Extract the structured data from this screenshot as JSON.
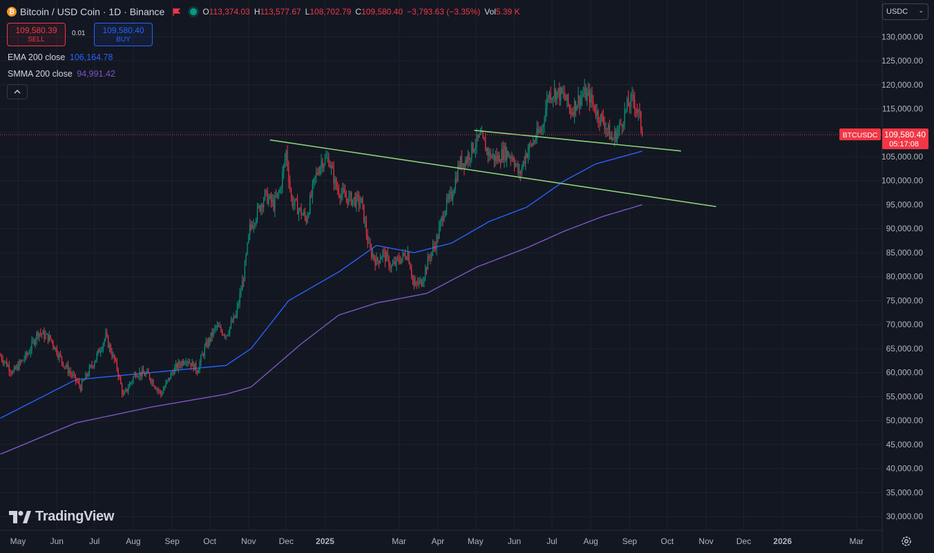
{
  "header": {
    "title": "Bitcoin / USD Coin · 1D · Binance",
    "ohlc": [
      {
        "key": "O",
        "value": "113,374.03"
      },
      {
        "key": "H",
        "value": "113,577.67"
      },
      {
        "key": "L",
        "value": "108,702.79"
      },
      {
        "key": "C",
        "value": "109,580.40"
      }
    ],
    "change": "−3,793.63 (−3.35%)",
    "vol_label": "Vol",
    "vol_value": "5.39 K"
  },
  "trade": {
    "sell_price": "109,580.39",
    "sell_label": "SELL",
    "spread": "0.01",
    "buy_price": "109,580.40",
    "buy_label": "BUY"
  },
  "indicators": [
    {
      "name": "EMA 200 close",
      "value": "106,164.78",
      "color": "#2962ff"
    },
    {
      "name": "SMMA 200 close",
      "value": "94,991.42",
      "color": "#7e57c2"
    }
  ],
  "currency": "USDC",
  "brand": "TradingView",
  "price_tag": {
    "symbol": "BTCUSDC",
    "price": "109,580.40",
    "countdown": "05:17:08"
  },
  "colors": {
    "background": "#131722",
    "up": "#089981",
    "down": "#f23645",
    "trendline": "#8bd27a",
    "grid": "#1e222d",
    "text": "#b2b5be"
  },
  "chart_data": {
    "type": "candlestick",
    "y_axis": {
      "min": 27000,
      "max": 132000,
      "ticks": [
        "130,000.00",
        "125,000.00",
        "120,000.00",
        "115,000.00",
        "110,000.00",
        "105,000.00",
        "100,000.00",
        "95,000.00",
        "90,000.00",
        "85,000.00",
        "80,000.00",
        "75,000.00",
        "70,000.00",
        "65,000.00",
        "60,000.00",
        "55,000.00",
        "50,000.00",
        "45,000.00",
        "40,000.00",
        "35,000.00",
        "30,000.00"
      ]
    },
    "x_axis": {
      "labels": [
        "May",
        "Jun",
        "Jul",
        "Aug",
        "Sep",
        "Oct",
        "Nov",
        "Dec",
        "2025",
        "Mar",
        "Apr",
        "May",
        "Jun",
        "Jul",
        "Aug",
        "Sep",
        "Oct",
        "Nov",
        "Dec",
        "2026",
        "Mar"
      ],
      "label_day_index": [
        0,
        31,
        61,
        92,
        123,
        153,
        184,
        214,
        245,
        304,
        335,
        365,
        396,
        426,
        457,
        488,
        518,
        549,
        579,
        610,
        669
      ],
      "bold_labels": [
        "2025",
        "2026"
      ]
    },
    "price_path_anchors": [
      {
        "day": 0,
        "price": 63500
      },
      {
        "day": 10,
        "price": 60000
      },
      {
        "day": 22,
        "price": 64000
      },
      {
        "day": 30,
        "price": 68500
      },
      {
        "day": 40,
        "price": 67000
      },
      {
        "day": 50,
        "price": 62000
      },
      {
        "day": 64,
        "price": 57000
      },
      {
        "day": 76,
        "price": 63000
      },
      {
        "day": 84,
        "price": 67500
      },
      {
        "day": 93,
        "price": 61000
      },
      {
        "day": 98,
        "price": 55000
      },
      {
        "day": 108,
        "price": 60000
      },
      {
        "day": 118,
        "price": 59500
      },
      {
        "day": 128,
        "price": 55500
      },
      {
        "day": 138,
        "price": 60500
      },
      {
        "day": 148,
        "price": 63000
      },
      {
        "day": 157,
        "price": 60500
      },
      {
        "day": 163,
        "price": 65000
      },
      {
        "day": 172,
        "price": 69500
      },
      {
        "day": 180,
        "price": 68000
      },
      {
        "day": 188,
        "price": 72000
      },
      {
        "day": 194,
        "price": 80000
      },
      {
        "day": 199,
        "price": 90000
      },
      {
        "day": 205,
        "price": 93500
      },
      {
        "day": 211,
        "price": 97000
      },
      {
        "day": 218,
        "price": 95000
      },
      {
        "day": 223,
        "price": 98000
      },
      {
        "day": 228,
        "price": 106000
      },
      {
        "day": 232,
        "price": 96000
      },
      {
        "day": 238,
        "price": 94000
      },
      {
        "day": 244,
        "price": 92000
      },
      {
        "day": 251,
        "price": 100500
      },
      {
        "day": 256,
        "price": 104000
      },
      {
        "day": 262,
        "price": 104500
      },
      {
        "day": 268,
        "price": 98500
      },
      {
        "day": 275,
        "price": 96500
      },
      {
        "day": 282,
        "price": 96000
      },
      {
        "day": 288,
        "price": 95500
      },
      {
        "day": 294,
        "price": 86000
      },
      {
        "day": 300,
        "price": 83000
      },
      {
        "day": 305,
        "price": 85000
      },
      {
        "day": 312,
        "price": 82000
      },
      {
        "day": 318,
        "price": 83500
      },
      {
        "day": 325,
        "price": 85000
      },
      {
        "day": 330,
        "price": 78000
      },
      {
        "day": 336,
        "price": 79000
      },
      {
        "day": 342,
        "price": 84000
      },
      {
        "day": 348,
        "price": 87500
      },
      {
        "day": 354,
        "price": 94000
      },
      {
        "day": 360,
        "price": 97000
      },
      {
        "day": 366,
        "price": 103500
      },
      {
        "day": 372,
        "price": 104500
      },
      {
        "day": 378,
        "price": 107500
      },
      {
        "day": 383,
        "price": 109000
      },
      {
        "day": 390,
        "price": 105500
      },
      {
        "day": 396,
        "price": 104500
      },
      {
        "day": 402,
        "price": 106000
      },
      {
        "day": 409,
        "price": 105000
      },
      {
        "day": 414,
        "price": 101000
      },
      {
        "day": 419,
        "price": 105500
      },
      {
        "day": 426,
        "price": 108500
      },
      {
        "day": 432,
        "price": 111000
      },
      {
        "day": 437,
        "price": 118000
      },
      {
        "day": 443,
        "price": 118500
      },
      {
        "day": 450,
        "price": 117500
      },
      {
        "day": 455,
        "price": 114500
      },
      {
        "day": 460,
        "price": 116500
      },
      {
        "day": 465,
        "price": 118000
      },
      {
        "day": 470,
        "price": 117500
      },
      {
        "day": 476,
        "price": 114000
      },
      {
        "day": 482,
        "price": 112000
      },
      {
        "day": 488,
        "price": 108500
      },
      {
        "day": 494,
        "price": 111000
      },
      {
        "day": 500,
        "price": 115500
      },
      {
        "day": 505,
        "price": 117000
      },
      {
        "day": 510,
        "price": 113000
      },
      {
        "day": 512,
        "price": 109580
      }
    ],
    "ema200_anchors": [
      {
        "day": 0,
        "price": 50500
      },
      {
        "day": 60,
        "price": 58500
      },
      {
        "day": 120,
        "price": 60000
      },
      {
        "day": 180,
        "price": 61500
      },
      {
        "day": 200,
        "price": 65000
      },
      {
        "day": 230,
        "price": 75000
      },
      {
        "day": 270,
        "price": 81000
      },
      {
        "day": 300,
        "price": 86500
      },
      {
        "day": 330,
        "price": 85000
      },
      {
        "day": 360,
        "price": 87000
      },
      {
        "day": 390,
        "price": 91500
      },
      {
        "day": 420,
        "price": 94500
      },
      {
        "day": 450,
        "price": 100000
      },
      {
        "day": 475,
        "price": 103500
      },
      {
        "day": 512,
        "price": 106165
      }
    ],
    "smma200_anchors": [
      {
        "day": 0,
        "price": 43000
      },
      {
        "day": 60,
        "price": 49500
      },
      {
        "day": 120,
        "price": 52800
      },
      {
        "day": 180,
        "price": 55500
      },
      {
        "day": 200,
        "price": 57000
      },
      {
        "day": 240,
        "price": 66000
      },
      {
        "day": 270,
        "price": 72000
      },
      {
        "day": 300,
        "price": 74500
      },
      {
        "day": 340,
        "price": 76500
      },
      {
        "day": 380,
        "price": 82000
      },
      {
        "day": 420,
        "price": 86000
      },
      {
        "day": 450,
        "price": 89500
      },
      {
        "day": 480,
        "price": 92500
      },
      {
        "day": 512,
        "price": 94991
      }
    ],
    "trendlines": [
      {
        "from": {
          "day": 215,
          "price": 108500
        },
        "to": {
          "day": 571,
          "price": 94600
        }
      },
      {
        "from": {
          "day": 378,
          "price": 110500
        },
        "to": {
          "day": 543,
          "price": 106200
        }
      }
    ],
    "last_price": 109580.4
  }
}
